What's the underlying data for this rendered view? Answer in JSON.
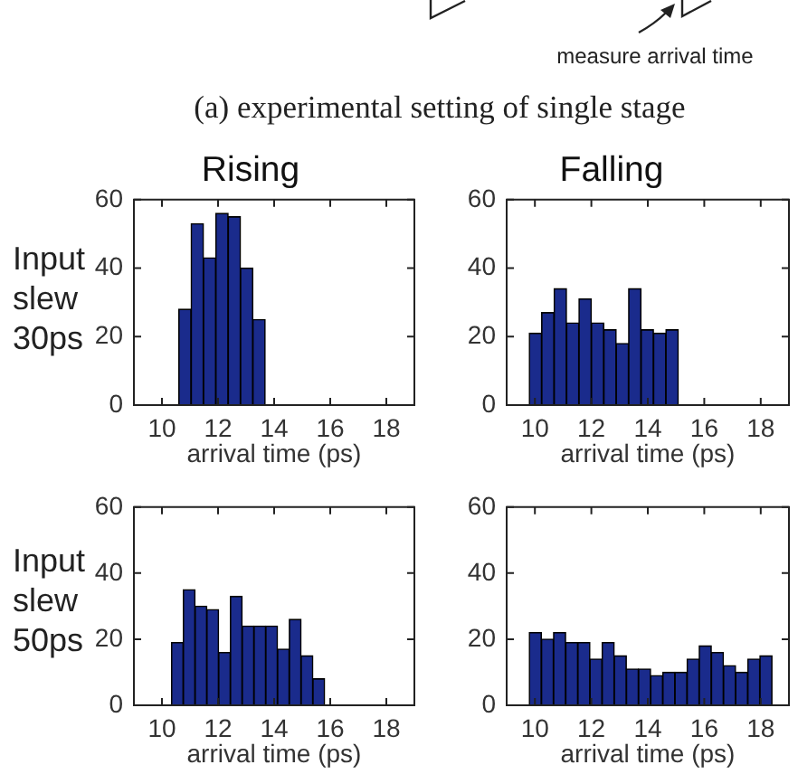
{
  "chart_data": [
    {
      "type": "histogram",
      "title": "Rising",
      "ylabel": "Input slew 30ps",
      "xlabel": "arrival time (ps)",
      "annotations": [
        "measure arrival time",
        "(a) experimental setting of single stage"
      ],
      "bins": [
        10.6,
        11.04,
        11.48,
        11.92,
        12.36,
        12.8,
        13.24,
        13.68
      ],
      "values": [
        28,
        53,
        43,
        56,
        55,
        40,
        25
      ],
      "color": "#1a2b8c",
      "xlim": [
        9,
        19
      ],
      "xticks": [
        10,
        12,
        14,
        16,
        18
      ],
      "ylim": [
        0,
        60
      ],
      "yticks": [
        0,
        20,
        40,
        60
      ]
    },
    {
      "type": "histogram",
      "title": "Falling",
      "xlabel": "arrival time (ps)",
      "bins": [
        9.8,
        10.24,
        10.68,
        11.12,
        11.56,
        12,
        12.44,
        12.88,
        13.32,
        13.76,
        14.2,
        14.64,
        15.08
      ],
      "values": [
        21,
        27,
        34,
        24,
        31,
        24,
        22,
        18,
        34,
        22,
        21,
        22
      ],
      "color": "#1a2b8c",
      "xlim": [
        9,
        19
      ],
      "xticks": [
        10,
        12,
        14,
        16,
        18
      ],
      "ylim": [
        0,
        60
      ],
      "yticks": [
        0,
        20,
        40,
        60
      ]
    },
    {
      "type": "histogram",
      "ylabel": "Input slew 50ps",
      "xlabel": "arrival time (ps)",
      "bins": [
        10.34,
        10.76,
        11.18,
        11.6,
        12.02,
        12.44,
        12.86,
        13.28,
        13.7,
        14.12,
        14.54,
        14.96,
        15.38,
        15.8
      ],
      "values": [
        19,
        35,
        30,
        29,
        16,
        33,
        24,
        24,
        24,
        17,
        26,
        15,
        8
      ],
      "color": "#1a2b8c",
      "xlim": [
        9,
        19
      ],
      "xticks": [
        10,
        12,
        14,
        16,
        18
      ],
      "ylim": [
        0,
        60
      ],
      "yticks": [
        0,
        20,
        40,
        60
      ]
    },
    {
      "type": "histogram",
      "xlabel": "arrival time (ps)",
      "bins": [
        9.8,
        10.23,
        10.66,
        11.09,
        11.52,
        11.95,
        12.38,
        12.81,
        13.24,
        13.67,
        14.1,
        14.53,
        14.96,
        15.39,
        15.82,
        16.25,
        16.68,
        17.11,
        17.54,
        17.97,
        18.4
      ],
      "values": [
        22,
        20,
        22,
        19,
        19,
        14,
        19,
        15,
        11,
        11,
        9,
        10,
        10,
        14,
        18,
        16,
        12,
        10,
        14,
        15
      ],
      "color": "#1a2b8c",
      "xlim": [
        9,
        19
      ],
      "xticks": [
        10,
        12,
        14,
        16,
        18
      ],
      "ylim": [
        0,
        60
      ],
      "yticks": [
        0,
        20,
        40,
        60
      ]
    }
  ]
}
